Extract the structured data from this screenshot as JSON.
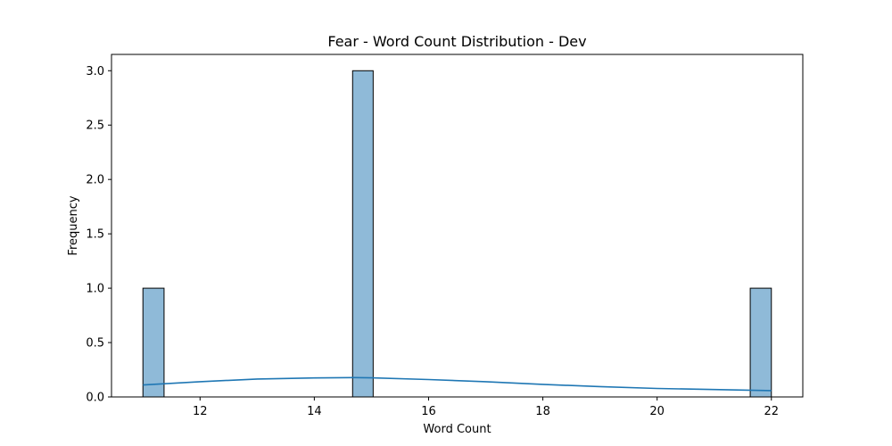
{
  "chart_data": {
    "type": "bar",
    "title": "Fear - Word Count Distribution - Dev",
    "xlabel": "Word Count",
    "ylabel": "Frequency",
    "xlim": [
      10.45,
      22.55
    ],
    "ylim": [
      0,
      3.15
    ],
    "x_ticks": [
      12,
      14,
      16,
      18,
      20,
      22
    ],
    "x_tick_labels": [
      "12",
      "14",
      "16",
      "18",
      "20",
      "22"
    ],
    "y_ticks": [
      0,
      0.5,
      1.0,
      1.5,
      2.0,
      2.5,
      3.0
    ],
    "y_tick_labels": [
      "0.0",
      "0.5",
      "1.0",
      "1.5",
      "2.0",
      "2.5",
      "3.0"
    ],
    "bins": [
      {
        "x0": 11.0,
        "x1": 11.37,
        "count": 1
      },
      {
        "x0": 14.67,
        "x1": 15.03,
        "count": 3
      },
      {
        "x0": 21.63,
        "x1": 22.0,
        "count": 1
      }
    ],
    "kde": {
      "x": [
        11.0,
        12.0,
        13.0,
        14.0,
        14.7,
        15.0,
        16.0,
        17.0,
        18.0,
        19.0,
        20.0,
        21.0,
        22.0
      ],
      "y": [
        0.11,
        0.14,
        0.165,
        0.175,
        0.178,
        0.176,
        0.16,
        0.14,
        0.115,
        0.095,
        0.078,
        0.068,
        0.058
      ]
    },
    "grid": false,
    "legend": "none",
    "colors": {
      "bar_fill": "#8fbad8",
      "bar_edge": "#000000",
      "kde_line": "#1f77b4",
      "axes": "#000000"
    }
  }
}
